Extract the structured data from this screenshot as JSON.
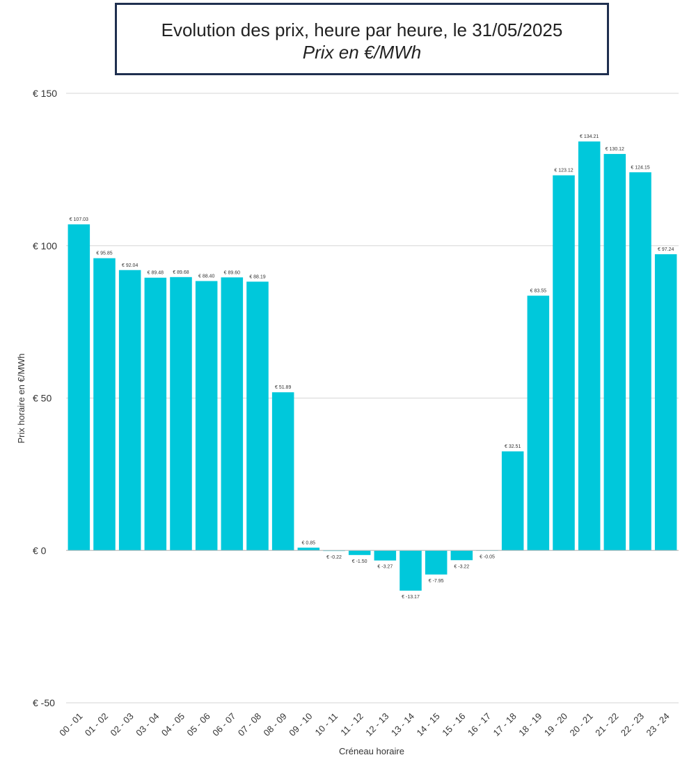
{
  "chart_data": {
    "type": "bar",
    "title": "Evolution des prix, heure par heure, le 31/05/2025",
    "subtitle": "Prix en €/MWh",
    "xlabel": "Créneau horaire",
    "ylabel": "Prix horaire en €/MWh",
    "ylim": [
      -50,
      150
    ],
    "yticks": [
      150,
      100,
      50,
      0,
      -50
    ],
    "ytick_labels": [
      "€ 150",
      "€ 100",
      "€ 50",
      "€ 0",
      "€ -50"
    ],
    "grid": true,
    "bar_color": "#00c8db",
    "categories": [
      "00 - 01",
      "01 - 02",
      "02 - 03",
      "03 - 04",
      "04 - 05",
      "05 - 06",
      "06 - 07",
      "07 - 08",
      "08 - 09",
      "09 - 10",
      "10 - 11",
      "11 - 12",
      "12 - 13",
      "13 - 14",
      "14 - 15",
      "15 - 16",
      "16 - 17",
      "17 - 18",
      "18 - 19",
      "19 - 20",
      "20 - 21",
      "21 - 22",
      "22 - 23",
      "23 - 24"
    ],
    "values": [
      107.0,
      95.9,
      92.0,
      89.5,
      89.7,
      88.4,
      89.6,
      88.2,
      51.9,
      0.9,
      -0.2,
      -1.5,
      -3.3,
      -13.2,
      -7.9,
      -3.2,
      -0.1,
      32.5,
      83.6,
      123.1,
      134.2,
      130.1,
      124.1,
      97.2
    ],
    "data_labels": [
      "€ 107.03",
      "€ 95.85",
      "€ 92.04",
      "€ 89.48",
      "€ 89.68",
      "€ 88.40",
      "€ 89.60",
      "€ 88.19",
      "€ 51.89",
      "€ 0.85",
      "€ -0.22",
      "€ -1.50",
      "€ -3.27",
      "€ -13.17",
      "€ -7.95",
      "€ -3.22",
      "€ -0.05",
      "€ 32.51",
      "€ 83.55",
      "€ 123.12",
      "€ 134.21",
      "€ 130.12",
      "€ 124.15",
      "€ 97.24"
    ]
  }
}
